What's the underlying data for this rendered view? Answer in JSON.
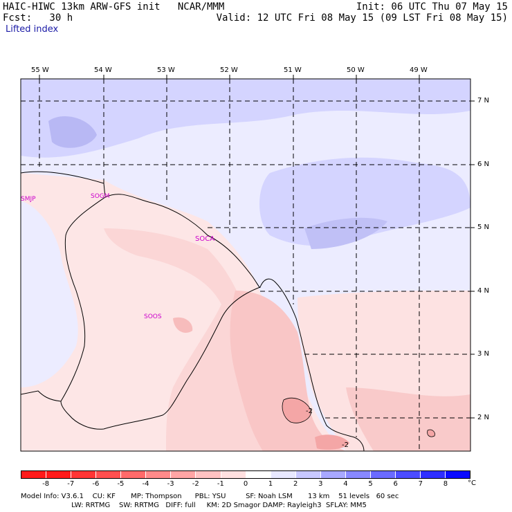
{
  "header": {
    "line1_left": "HAIC-HIWC 13km ARW-GFS init   NCAR/MMM",
    "line2_left": "Fcst:   30 h",
    "line1_right": "Init: 06 UTC Thu 07 May 15",
    "line2_right": "Valid: 12 UTC Fri 08 May 15 (09 LST Fri 08 May 15)",
    "field_name": "Lifted index"
  },
  "map": {
    "lon_labels": [
      "55 W",
      "54 W",
      "53 W",
      "52 W",
      "51 W",
      "50 W",
      "49 W"
    ],
    "lat_labels": [
      "7 N",
      "6 N",
      "5 N",
      "4 N",
      "3 N",
      "2 N"
    ],
    "stations": [
      "SMJP",
      "SOGM",
      "SOCA",
      "SOOS"
    ],
    "contour_labels": [
      "-2",
      "-2"
    ]
  },
  "colorbar": {
    "unit": "°C",
    "labels": [
      "-8",
      "-7",
      "-6",
      "-5",
      "-4",
      "-3",
      "-2",
      "-1",
      "0",
      "1",
      "2",
      "3",
      "4",
      "5",
      "6",
      "7",
      "8"
    ],
    "colors": [
      "#ff1a1a",
      "#ff3535",
      "#ff4f4f",
      "#ff6a6a",
      "#ff8a8a",
      "#ffa5a5",
      "#ffc2c2",
      "#ffe0e0",
      "#ffffff",
      "#e8e8ff",
      "#c8c8ff",
      "#a8a8ff",
      "#8888ff",
      "#6a6aff",
      "#4c4cff",
      "#2e2eff",
      "#0a0aff"
    ]
  },
  "footer": {
    "line1": "Model Info: V3.6.1    CU: KF       MP: Thompson      PBL: YSU         SF: Noah LSM       13 km    51 levels   60 sec",
    "line2": "                       LW: RRTMG    SW: RRTMG   DIFF: full     KM: 2D Smagor DAMP: Rayleigh3  SFLAY: MM5"
  }
}
